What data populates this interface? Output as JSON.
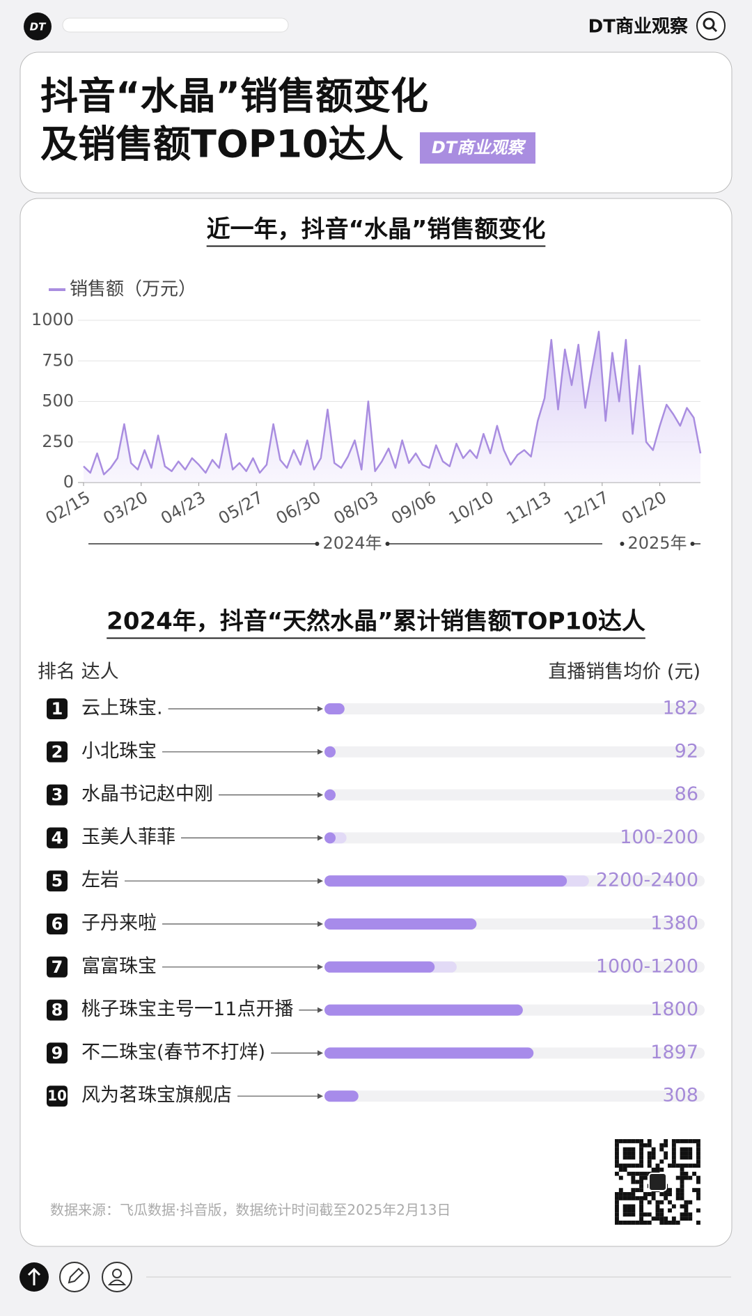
{
  "header": {
    "brand": "DT商业观察",
    "title_line1": "抖音“水晶”销售额变化",
    "title_line2": "及销售额TOP10达人",
    "badge": "DT商业观察"
  },
  "chart_data": [
    {
      "type": "line",
      "title": "近一年，抖音“水晶”销售额变化",
      "legend": "销售额（万元）",
      "color": "#a98de0",
      "x": [
        0,
        4,
        8,
        12,
        16,
        20,
        24,
        28,
        32,
        36,
        40,
        44,
        48,
        52,
        56,
        60,
        64,
        68,
        72,
        76,
        80,
        84,
        88,
        92,
        96,
        100,
        104,
        108,
        112,
        116,
        120,
        124,
        128,
        132,
        136,
        140,
        144,
        148,
        152,
        156,
        160,
        164,
        168,
        172,
        176,
        180,
        184,
        188,
        192,
        196,
        200,
        204,
        208,
        212,
        216,
        220,
        224,
        228,
        232,
        236,
        240,
        244,
        248,
        252,
        256,
        260,
        264,
        268,
        272,
        276,
        280,
        284,
        288,
        292,
        296,
        300,
        304,
        308,
        312,
        316,
        320,
        324,
        328,
        332,
        336,
        340,
        344,
        348,
        352,
        356,
        360,
        364
      ],
      "values": [
        100,
        60,
        180,
        50,
        90,
        150,
        360,
        120,
        80,
        200,
        90,
        290,
        100,
        70,
        130,
        80,
        150,
        110,
        60,
        140,
        90,
        300,
        80,
        120,
        70,
        150,
        60,
        110,
        360,
        140,
        90,
        200,
        110,
        260,
        80,
        150,
        450,
        120,
        90,
        160,
        260,
        80,
        500,
        70,
        130,
        210,
        90,
        260,
        120,
        180,
        110,
        90,
        230,
        130,
        100,
        240,
        150,
        200,
        150,
        300,
        180,
        350,
        200,
        110,
        170,
        200,
        160,
        380,
        520,
        880,
        450,
        820,
        600,
        850,
        460,
        700,
        930,
        380,
        800,
        500,
        880,
        300,
        720,
        250,
        200,
        350,
        480,
        420,
        350,
        460,
        400,
        180
      ],
      "xlim": [
        0,
        364
      ],
      "xticks": [
        {
          "value": 0,
          "label": "02/15"
        },
        {
          "value": 34,
          "label": "03/20"
        },
        {
          "value": 68,
          "label": "04/23"
        },
        {
          "value": 102,
          "label": "05/27"
        },
        {
          "value": 136,
          "label": "06/30"
        },
        {
          "value": 170,
          "label": "08/03"
        },
        {
          "value": 204,
          "label": "09/06"
        },
        {
          "value": 238,
          "label": "10/10"
        },
        {
          "value": 272,
          "label": "11/13"
        },
        {
          "value": 306,
          "label": "12/17"
        },
        {
          "value": 340,
          "label": "01/20"
        }
      ],
      "ylim": [
        0,
        1000
      ],
      "yticks": [
        0,
        250,
        500,
        750,
        1000
      ],
      "grid": true,
      "year_labels": [
        "2024年",
        "2025年"
      ]
    },
    {
      "type": "range_bar",
      "title": "2024年，抖音“天然水晶”累计销售额TOP10达人",
      "rank_header": "排名 达人",
      "value_header": "直播销售均价 (元)",
      "ranks": [
        1,
        2,
        3,
        4,
        5,
        6,
        7,
        8,
        9,
        10
      ],
      "categories": [
        "云上珠宝.",
        "小北珠宝",
        "水晶书记赵中刚",
        "玉美人菲菲",
        "左岩",
        "子丹来啦",
        "富富珠宝",
        "桃子珠宝主号一11点开播",
        "不二珠宝(春节不打烊)",
        "风为茗珠宝旗舰店"
      ],
      "low": [
        182,
        92,
        86,
        100,
        2200,
        1380,
        1000,
        1800,
        1897,
        308
      ],
      "high": [
        182,
        92,
        86,
        200,
        2400,
        1380,
        1200,
        1800,
        1897,
        308
      ],
      "value_labels": [
        "182",
        "92",
        "86",
        "100-200",
        "2200-2400",
        "1380",
        "1000-1200",
        "1800",
        "1897",
        "308"
      ],
      "xlim": [
        0,
        3450
      ],
      "color": "#a78bea",
      "range_color": "#e2daf6"
    }
  ],
  "source": "数据来源：飞瓜数据·抖音版，数据统计时间截至2025年2月13日"
}
